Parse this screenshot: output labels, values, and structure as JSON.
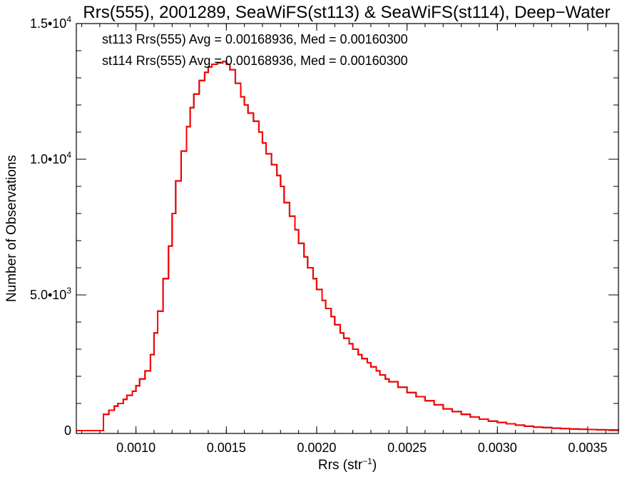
{
  "chart_data": {
    "type": "histogram",
    "title": "Rrs(555), 2001289, SeaWiFS(st113) & SeaWiFS(st114), Deep−Water",
    "xlabel": {
      "base": "Rrs (str",
      "sup": "−1",
      "close": ")"
    },
    "ylabel": "Number of Observations",
    "xlim": [
      0.00067,
      0.00367
    ],
    "ylim": [
      0,
      15000
    ],
    "x_ticks": [
      {
        "value": 0.001,
        "label": "0.0010"
      },
      {
        "value": 0.0015,
        "label": "0.0015"
      },
      {
        "value": 0.002,
        "label": "0.0020"
      },
      {
        "value": 0.0025,
        "label": "0.0025"
      },
      {
        "value": 0.003,
        "label": "0.0030"
      },
      {
        "value": 0.0035,
        "label": "0.0035"
      }
    ],
    "y_ticks": [
      {
        "value": 0,
        "base": "0",
        "sup": ""
      },
      {
        "value": 5000,
        "base": "5.0•10",
        "sup": "3"
      },
      {
        "value": 10000,
        "base": "1.0•10",
        "sup": "4"
      },
      {
        "value": 15000,
        "base": "1.5•10",
        "sup": "4"
      }
    ],
    "legend": [
      {
        "text": "st113 Rrs(555) Avg = 0.00168936, Med = 0.00160300",
        "color": "#000000"
      },
      {
        "text": "st114 Rrs(555) Avg = 0.00168936, Med = 0.00160300",
        "color": "#ff0000"
      }
    ],
    "series": [
      {
        "color": "#000000",
        "x": [
          0.00067,
          0.0007,
          0.00075,
          0.0008,
          0.00082,
          0.00085,
          0.00088,
          0.0009,
          0.00093,
          0.00095,
          0.00098,
          0.001,
          0.00102,
          0.00105,
          0.00108,
          0.0011,
          0.00112,
          0.00115,
          0.00118,
          0.0012,
          0.00122,
          0.00125,
          0.00128,
          0.0013,
          0.00132,
          0.00135,
          0.00138,
          0.0014,
          0.00142,
          0.00145,
          0.00148,
          0.0015,
          0.00152,
          0.00155,
          0.00158,
          0.0016,
          0.00162,
          0.00165,
          0.00168,
          0.0017,
          0.00172,
          0.00175,
          0.00178,
          0.0018,
          0.00182,
          0.00185,
          0.00188,
          0.0019,
          0.00193,
          0.00195,
          0.00198,
          0.002,
          0.00203,
          0.00205,
          0.00208,
          0.0021,
          0.00213,
          0.00215,
          0.00218,
          0.0022,
          0.00223,
          0.00225,
          0.00228,
          0.0023,
          0.00233,
          0.00235,
          0.00238,
          0.0024,
          0.00245,
          0.0025,
          0.00255,
          0.0026,
          0.00265,
          0.0027,
          0.00275,
          0.0028,
          0.00285,
          0.0029,
          0.00295,
          0.003,
          0.00305,
          0.0031,
          0.00315,
          0.0032,
          0.00325,
          0.0033,
          0.00335,
          0.0034,
          0.00345,
          0.0035,
          0.00355,
          0.0036,
          0.00367
        ],
        "values": [
          0,
          0,
          0,
          0,
          600,
          750,
          900,
          1000,
          1150,
          1300,
          1450,
          1650,
          1900,
          2200,
          2800,
          3600,
          4400,
          5600,
          6800,
          8000,
          9200,
          10300,
          11200,
          11900,
          12400,
          12900,
          13200,
          13400,
          13500,
          13550,
          13600,
          13500,
          13300,
          12800,
          12300,
          12000,
          11700,
          11400,
          11000,
          10600,
          10200,
          9800,
          9400,
          9000,
          8400,
          7900,
          7400,
          6900,
          6400,
          6000,
          5600,
          5200,
          4800,
          4500,
          4200,
          3900,
          3600,
          3400,
          3200,
          3000,
          2800,
          2650,
          2500,
          2350,
          2200,
          2050,
          1900,
          1800,
          1600,
          1400,
          1250,
          1100,
          950,
          800,
          700,
          600,
          500,
          420,
          350,
          300,
          250,
          200,
          160,
          130,
          110,
          90,
          75,
          60,
          50,
          40,
          30,
          25,
          20
        ]
      },
      {
        "color": "#ff0000",
        "x": [
          0.00067,
          0.0007,
          0.00075,
          0.0008,
          0.00082,
          0.00085,
          0.00088,
          0.0009,
          0.00093,
          0.00095,
          0.00098,
          0.001,
          0.00102,
          0.00105,
          0.00108,
          0.0011,
          0.00112,
          0.00115,
          0.00118,
          0.0012,
          0.00122,
          0.00125,
          0.00128,
          0.0013,
          0.00132,
          0.00135,
          0.00138,
          0.0014,
          0.00142,
          0.00145,
          0.00148,
          0.0015,
          0.00152,
          0.00155,
          0.00158,
          0.0016,
          0.00162,
          0.00165,
          0.00168,
          0.0017,
          0.00172,
          0.00175,
          0.00178,
          0.0018,
          0.00182,
          0.00185,
          0.00188,
          0.0019,
          0.00193,
          0.00195,
          0.00198,
          0.002,
          0.00203,
          0.00205,
          0.00208,
          0.0021,
          0.00213,
          0.00215,
          0.00218,
          0.0022,
          0.00223,
          0.00225,
          0.00228,
          0.0023,
          0.00233,
          0.00235,
          0.00238,
          0.0024,
          0.00245,
          0.0025,
          0.00255,
          0.0026,
          0.00265,
          0.0027,
          0.00275,
          0.0028,
          0.00285,
          0.0029,
          0.00295,
          0.003,
          0.00305,
          0.0031,
          0.00315,
          0.0032,
          0.00325,
          0.0033,
          0.00335,
          0.0034,
          0.00345,
          0.0035,
          0.00355,
          0.0036,
          0.00367
        ],
        "values": [
          0,
          0,
          0,
          0,
          600,
          750,
          900,
          1000,
          1150,
          1300,
          1450,
          1650,
          1900,
          2200,
          2800,
          3600,
          4400,
          5600,
          6800,
          8000,
          9200,
          10300,
          11200,
          11900,
          12400,
          12900,
          13200,
          13400,
          13500,
          13550,
          13600,
          13500,
          13300,
          12800,
          12300,
          12000,
          11700,
          11400,
          11000,
          10600,
          10200,
          9800,
          9400,
          9000,
          8400,
          7900,
          7400,
          6900,
          6400,
          6000,
          5600,
          5200,
          4800,
          4500,
          4200,
          3900,
          3600,
          3400,
          3200,
          3000,
          2800,
          2650,
          2500,
          2350,
          2200,
          2050,
          1900,
          1800,
          1600,
          1400,
          1250,
          1100,
          950,
          800,
          700,
          600,
          500,
          420,
          350,
          300,
          250,
          200,
          160,
          130,
          110,
          90,
          75,
          60,
          50,
          40,
          30,
          25,
          20
        ]
      }
    ]
  }
}
